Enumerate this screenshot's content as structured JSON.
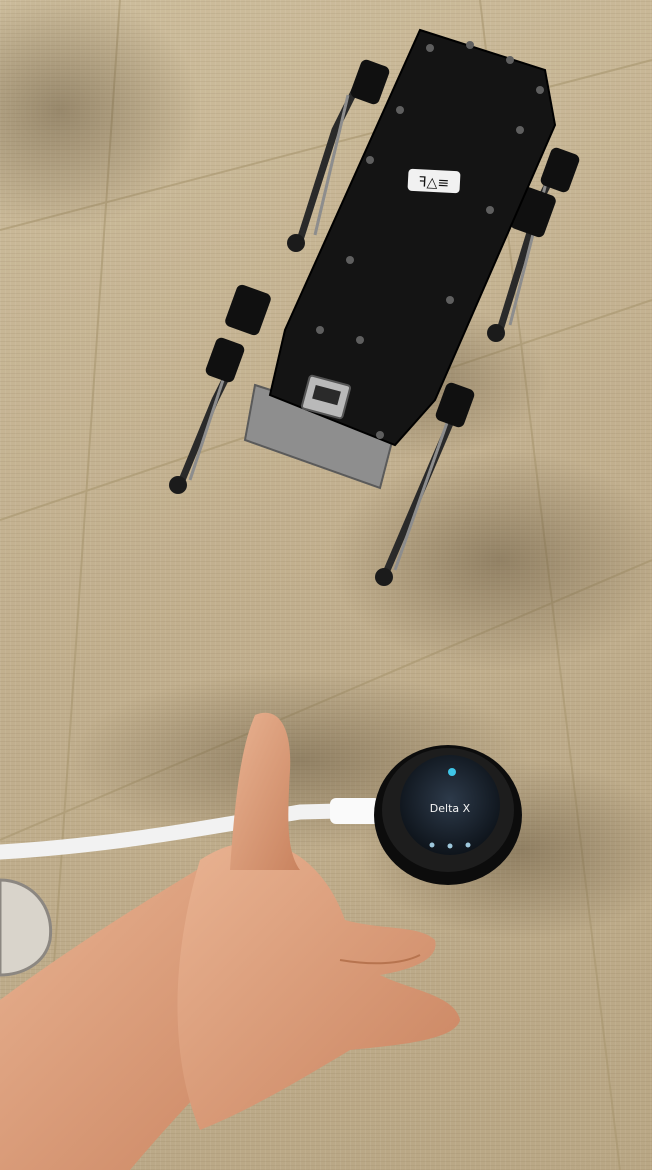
{
  "speaker": {
    "screen_label": "Delta X",
    "accent_color": "#3fc6e8"
  },
  "robot": {
    "top_label": "ꟻ△≡"
  },
  "colors": {
    "floor": "#c2b08f",
    "robot_body": "#141414",
    "metal": "#9a9a9a",
    "skin": "#e0a27e",
    "cable": "#f2f2f2"
  }
}
